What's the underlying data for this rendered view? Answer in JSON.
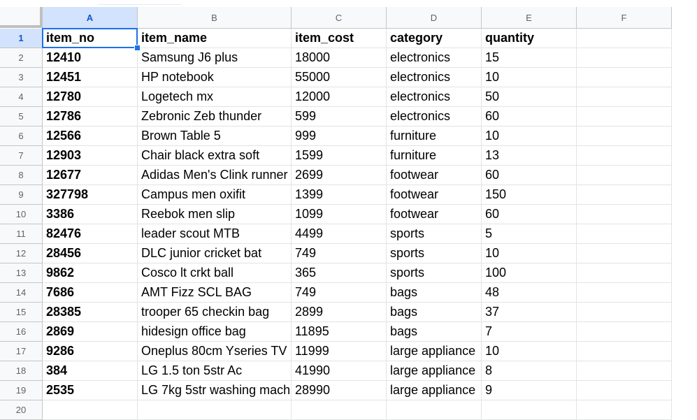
{
  "columns": [
    "A",
    "B",
    "C",
    "D",
    "E",
    "F"
  ],
  "selected_cell": "A1",
  "rows": [
    {
      "num": "1",
      "cells": [
        "item_no",
        "item_name",
        "item_cost",
        "category",
        "quantity",
        ""
      ]
    },
    {
      "num": "2",
      "cells": [
        "12410",
        "Samsung J6 plus",
        "18000",
        "electronics",
        "15",
        ""
      ]
    },
    {
      "num": "3",
      "cells": [
        "12451",
        "HP notebook",
        "55000",
        "electronics",
        "10",
        ""
      ]
    },
    {
      "num": "4",
      "cells": [
        "12780",
        "Logetech mx",
        "12000",
        "electronics",
        "50",
        ""
      ]
    },
    {
      "num": "5",
      "cells": [
        "12786",
        "Zebronic Zeb thunder",
        "599",
        "electronics",
        "60",
        ""
      ]
    },
    {
      "num": "6",
      "cells": [
        "12566",
        "Brown Table 5",
        "999",
        "furniture",
        "10",
        ""
      ]
    },
    {
      "num": "7",
      "cells": [
        "12903",
        "Chair black extra soft",
        "1599",
        "furniture",
        "13",
        ""
      ]
    },
    {
      "num": "8",
      "cells": [
        "12677",
        "Adidas Men's Clink runner",
        "2699",
        "footwear",
        "60",
        ""
      ]
    },
    {
      "num": "9",
      "cells": [
        "327798",
        "Campus men oxifit",
        "1399",
        "footwear",
        "150",
        ""
      ]
    },
    {
      "num": "10",
      "cells": [
        "3386",
        "Reebok men slip",
        "1099",
        "footwear",
        "60",
        ""
      ]
    },
    {
      "num": "11",
      "cells": [
        "82476",
        "leader scout MTB",
        "4499",
        "sports",
        "5",
        ""
      ]
    },
    {
      "num": "12",
      "cells": [
        "28456",
        "DLC junior cricket bat",
        "749",
        "sports",
        "10",
        ""
      ]
    },
    {
      "num": "13",
      "cells": [
        "9862",
        "Cosco lt crkt ball",
        "365",
        "sports",
        "100",
        ""
      ]
    },
    {
      "num": "14",
      "cells": [
        "7686",
        "AMT Fizz SCL BAG",
        "749",
        "bags",
        "48",
        ""
      ]
    },
    {
      "num": "15",
      "cells": [
        "28385",
        "trooper 65 checkin bag",
        "2899",
        "bags",
        "37",
        ""
      ]
    },
    {
      "num": "16",
      "cells": [
        "2869",
        "hidesign office bag",
        "11895",
        "bags",
        "7",
        ""
      ]
    },
    {
      "num": "17",
      "cells": [
        "9286",
        "Oneplus 80cm Yseries TV",
        "11999",
        "large appliance",
        "10",
        ""
      ]
    },
    {
      "num": "18",
      "cells": [
        "384",
        "LG 1.5 ton 5str Ac",
        "41990",
        "large appliance",
        "8",
        ""
      ]
    },
    {
      "num": "19",
      "cells": [
        "2535",
        "LG 7kg 5str washing mach",
        "28990",
        "large appliance",
        "9",
        ""
      ]
    },
    {
      "num": "20",
      "cells": [
        "",
        "",
        "",
        "",
        "",
        ""
      ]
    }
  ]
}
